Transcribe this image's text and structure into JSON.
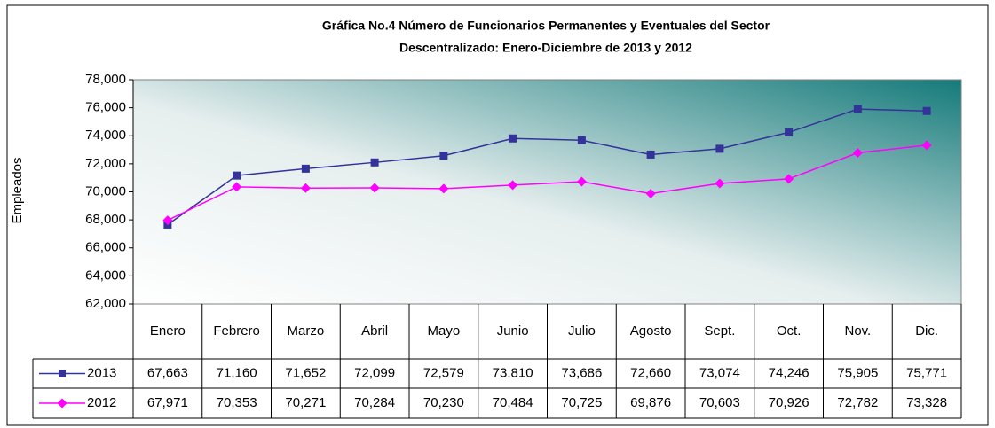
{
  "chart_data": {
    "type": "line",
    "title": "Gráfica No.4 Número de Funcionarios Permanentes y Eventuales del Sector Descentralizado: Enero-Diciembre de 2013 y 2012",
    "title_lines": [
      "Gráfica No.4 Número de Funcionarios Permanentes y Eventuales del Sector",
      "Descentralizado: Enero-Diciembre de 2013 y 2012"
    ],
    "y_label": "Empleados",
    "categories": [
      "Enero",
      "Febrero",
      "Marzo",
      "Abril",
      "Mayo",
      "Junio",
      "Julio",
      "Agosto",
      "Sept.",
      "Oct.",
      "Nov.",
      "Dic."
    ],
    "series": [
      {
        "name": "2013",
        "color": "#333399",
        "marker": "square",
        "values": [
          67663,
          71160,
          71652,
          72099,
          72579,
          73810,
          73686,
          72660,
          73074,
          74246,
          75905,
          75771
        ],
        "value_labels": [
          "67,663",
          "71,160",
          "71,652",
          "72,099",
          "72,579",
          "73,810",
          "73,686",
          "72,660",
          "73,074",
          "74,246",
          "75,905",
          "75,771"
        ]
      },
      {
        "name": "2012",
        "color": "#ff00ff",
        "marker": "diamond",
        "values": [
          67971,
          70353,
          70271,
          70284,
          70230,
          70484,
          70725,
          69876,
          70603,
          70926,
          72782,
          73328
        ],
        "value_labels": [
          "67,971",
          "70,353",
          "70,271",
          "70,284",
          "70,230",
          "70,484",
          "70,725",
          "69,876",
          "70,603",
          "70,926",
          "72,782",
          "73,328"
        ]
      }
    ],
    "ylim": [
      62000,
      78000
    ],
    "yticks": [
      {
        "value": 62000,
        "label": "62,000"
      },
      {
        "value": 64000,
        "label": "64,000"
      },
      {
        "value": 66000,
        "label": "66,000"
      },
      {
        "value": 68000,
        "label": "68,000"
      },
      {
        "value": 70000,
        "label": "70,000"
      },
      {
        "value": 72000,
        "label": "72,000"
      },
      {
        "value": 74000,
        "label": "74,000"
      },
      {
        "value": 76000,
        "label": "76,000"
      },
      {
        "value": 78000,
        "label": "78,000"
      }
    ],
    "grid": false
  }
}
